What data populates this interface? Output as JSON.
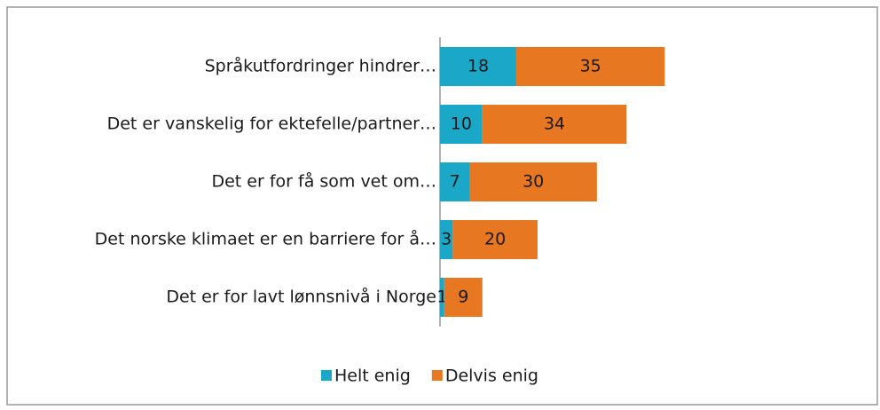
{
  "chart_data": {
    "type": "stacked-barh",
    "categories": [
      "Språkutfordringer hindrer…",
      "Det er vanskelig for ektefelle/partner…",
      "Det er for få som vet om…",
      "Det norske klimaet er en barriere for å…",
      "Det er for lavt lønnsnivå i Norge"
    ],
    "series": [
      {
        "name": "Helt enig",
        "color": "#1aa7c8",
        "values": [
          18,
          10,
          7,
          3,
          1
        ]
      },
      {
        "name": "Delvis enig",
        "color": "#e87722",
        "values": [
          35,
          34,
          30,
          20,
          9
        ]
      }
    ],
    "xlim": [
      0,
      100
    ],
    "legend": "bottom"
  }
}
